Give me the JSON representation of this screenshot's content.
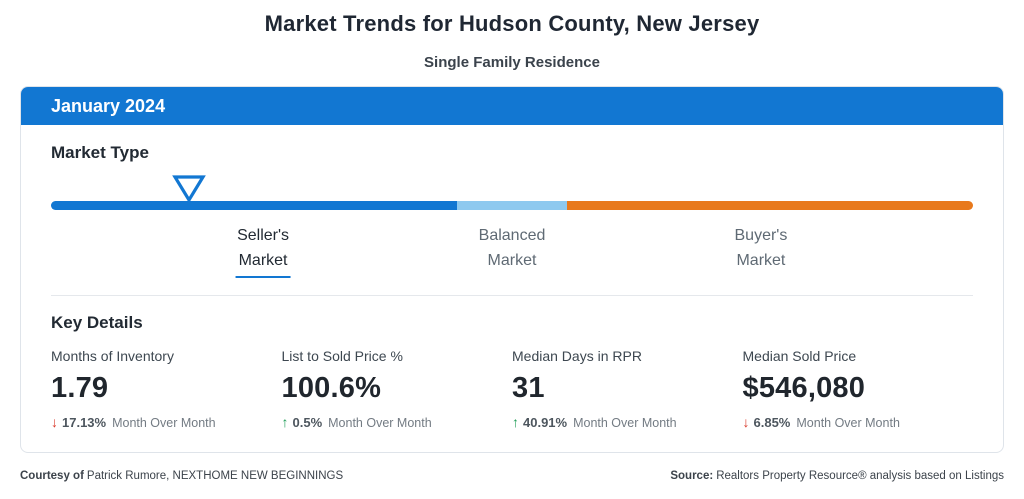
{
  "page": {
    "title": "Market Trends for Hudson County, New Jersey",
    "subtitle": "Single Family Residence"
  },
  "card": {
    "period": "January 2024",
    "market_type": {
      "heading": "Market Type",
      "current": "Seller's Market",
      "marker_position_pct": 15,
      "segments": [
        {
          "name": "Seller's Market",
          "color": "#1277d2",
          "width_pct": 44
        },
        {
          "name": "Balanced Market",
          "color": "#8ec9ef",
          "width_pct": 12
        },
        {
          "name": "Buyer's Market",
          "color": "#e8791c",
          "width_pct": 44
        }
      ],
      "labels": [
        {
          "line1": "Seller's",
          "line2": "Market",
          "active": true
        },
        {
          "line1": "Balanced",
          "line2": "Market",
          "active": false
        },
        {
          "line1": "Buyer's",
          "line2": "Market",
          "active": false
        }
      ]
    },
    "key_details": {
      "heading": "Key Details",
      "stats": [
        {
          "label": "Months of Inventory",
          "value": "1.79",
          "direction": "down",
          "change": "17.13%",
          "period": "Month Over Month"
        },
        {
          "label": "List to Sold Price %",
          "value": "100.6%",
          "direction": "up",
          "change": "0.5%",
          "period": "Month Over Month"
        },
        {
          "label": "Median Days in RPR",
          "value": "31",
          "direction": "up",
          "change": "40.91%",
          "period": "Month Over Month"
        },
        {
          "label": "Median Sold Price",
          "value": "$546,080",
          "direction": "down",
          "change": "6.85%",
          "period": "Month Over Month"
        }
      ]
    }
  },
  "footer": {
    "courtesy_label": "Courtesy of",
    "courtesy_text": "Patrick Rumore, NEXTHOME NEW BEGINNINGS",
    "source_label": "Source:",
    "source_text": "Realtors Property Resource® analysis based on Listings"
  },
  "icons": {
    "up_arrow": "↑",
    "down_arrow": "↓"
  },
  "colors": {
    "accent_blue": "#1277d2",
    "light_blue": "#8ec9ef",
    "orange": "#e8791c",
    "red": "#d93a2b",
    "green": "#1f9d57",
    "text_dark": "#222a33",
    "text_gray": "#5f6a74"
  }
}
